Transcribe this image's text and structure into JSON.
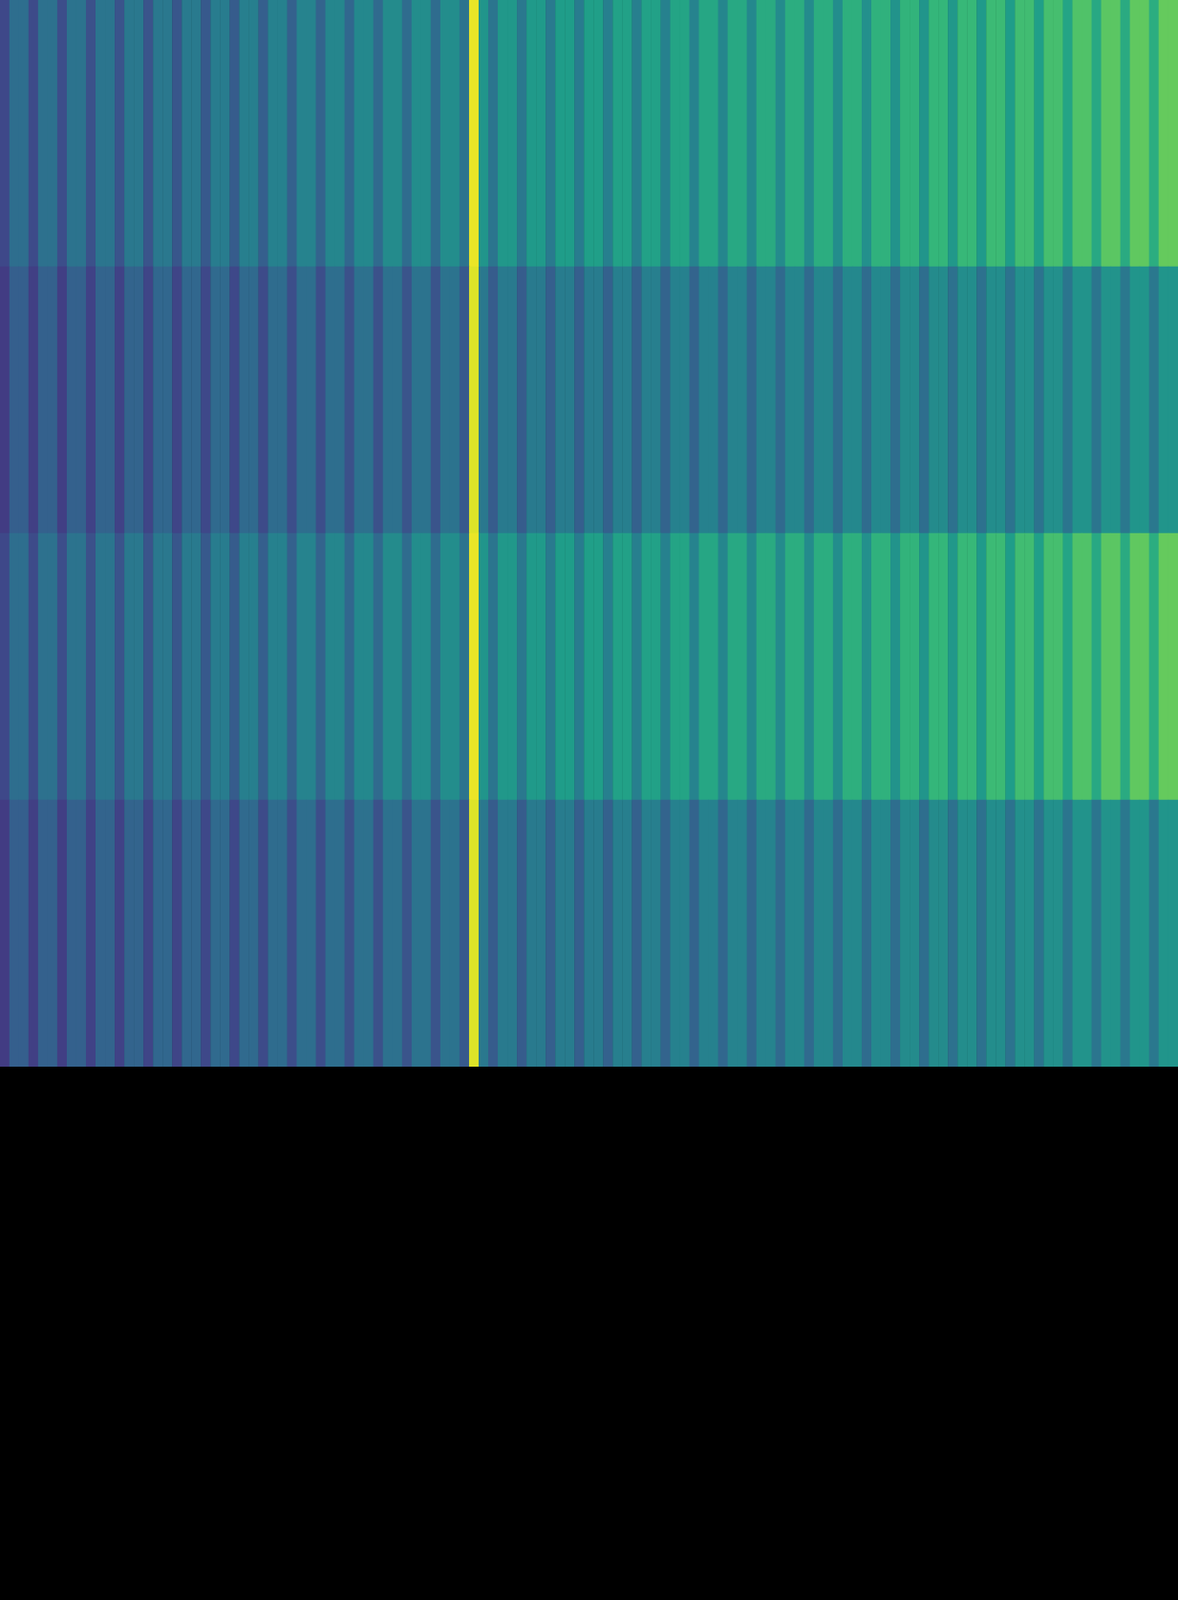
{
  "chart_data": {
    "type": "heatmap",
    "tick_labels": false,
    "grid": false,
    "color_range": [
      0,
      1
    ],
    "cells": [
      [
        0.22,
        0.36,
        0.36,
        0.23,
        0.37,
        0.37,
        0.24,
        0.38,
        0.38,
        0.25,
        0.39,
        0.39,
        0.26,
        0.4,
        0.4,
        0.26,
        0.4,
        0.4,
        0.27,
        0.41,
        0.41,
        0.28,
        0.42,
        0.42,
        0.29,
        0.43,
        0.43,
        0.3,
        0.44,
        0.44,
        0.31,
        0.45,
        0.45,
        0.32,
        0.46,
        0.46,
        0.33,
        0.47,
        0.47,
        0.34,
        0.48,
        0.48,
        0.35,
        0.49,
        0.49,
        0.35,
        0.49,
        0.49,
        0.38,
        0.97,
        0.52,
        0.39,
        0.53,
        0.53,
        0.4,
        0.54,
        0.54,
        0.41,
        0.55,
        0.55,
        0.42,
        0.56,
        0.56,
        0.43,
        0.57,
        0.57,
        0.43,
        0.57,
        0.57,
        0.44,
        0.58,
        0.58,
        0.45,
        0.59,
        0.59,
        0.46,
        0.6,
        0.6,
        0.47,
        0.61,
        0.61,
        0.48,
        0.62,
        0.62,
        0.48,
        0.62,
        0.62,
        0.49,
        0.63,
        0.63,
        0.5,
        0.64,
        0.64,
        0.51,
        0.65,
        0.65,
        0.52,
        0.66,
        0.66,
        0.53,
        0.67,
        0.67,
        0.54,
        0.68,
        0.68,
        0.55,
        0.69,
        0.69,
        0.56,
        0.7,
        0.7,
        0.58,
        0.72,
        0.72,
        0.6,
        0.74,
        0.74,
        0.61,
        0.75,
        0.75,
        0.62,
        0.76,
        0.76
      ],
      [
        0.18,
        0.3,
        0.3,
        0.19,
        0.31,
        0.31,
        0.19,
        0.31,
        0.31,
        0.2,
        0.32,
        0.32,
        0.2,
        0.32,
        0.32,
        0.21,
        0.33,
        0.33,
        0.21,
        0.33,
        0.33,
        0.22,
        0.34,
        0.34,
        0.22,
        0.34,
        0.34,
        0.23,
        0.35,
        0.35,
        0.24,
        0.36,
        0.36,
        0.24,
        0.36,
        0.36,
        0.25,
        0.37,
        0.37,
        0.25,
        0.37,
        0.37,
        0.26,
        0.38,
        0.38,
        0.26,
        0.38,
        0.38,
        0.28,
        0.95,
        0.4,
        0.29,
        0.41,
        0.41,
        0.29,
        0.41,
        0.41,
        0.3,
        0.42,
        0.42,
        0.3,
        0.42,
        0.42,
        0.31,
        0.43,
        0.43,
        0.31,
        0.43,
        0.43,
        0.32,
        0.44,
        0.44,
        0.32,
        0.44,
        0.44,
        0.33,
        0.45,
        0.45,
        0.33,
        0.45,
        0.45,
        0.34,
        0.46,
        0.46,
        0.34,
        0.46,
        0.46,
        0.35,
        0.47,
        0.47,
        0.35,
        0.47,
        0.47,
        0.36,
        0.48,
        0.48,
        0.36,
        0.48,
        0.48,
        0.37,
        0.49,
        0.49,
        0.37,
        0.49,
        0.49,
        0.38,
        0.5,
        0.5,
        0.38,
        0.5,
        0.5,
        0.39,
        0.51,
        0.51,
        0.39,
        0.51,
        0.51,
        0.4,
        0.52,
        0.52,
        0.4,
        0.52,
        0.52
      ],
      [
        0.22,
        0.36,
        0.36,
        0.23,
        0.37,
        0.37,
        0.24,
        0.38,
        0.38,
        0.25,
        0.39,
        0.39,
        0.26,
        0.4,
        0.4,
        0.26,
        0.4,
        0.4,
        0.27,
        0.41,
        0.41,
        0.28,
        0.42,
        0.42,
        0.29,
        0.43,
        0.43,
        0.3,
        0.44,
        0.44,
        0.31,
        0.45,
        0.45,
        0.32,
        0.46,
        0.46,
        0.33,
        0.47,
        0.47,
        0.34,
        0.48,
        0.48,
        0.35,
        0.49,
        0.49,
        0.35,
        0.49,
        0.49,
        0.38,
        0.97,
        0.52,
        0.39,
        0.53,
        0.53,
        0.4,
        0.54,
        0.54,
        0.41,
        0.55,
        0.55,
        0.42,
        0.56,
        0.56,
        0.43,
        0.57,
        0.57,
        0.43,
        0.57,
        0.57,
        0.44,
        0.58,
        0.58,
        0.45,
        0.59,
        0.59,
        0.46,
        0.6,
        0.6,
        0.47,
        0.61,
        0.61,
        0.48,
        0.62,
        0.62,
        0.48,
        0.62,
        0.62,
        0.49,
        0.63,
        0.63,
        0.5,
        0.64,
        0.64,
        0.51,
        0.65,
        0.65,
        0.52,
        0.66,
        0.66,
        0.53,
        0.67,
        0.67,
        0.54,
        0.68,
        0.68,
        0.55,
        0.69,
        0.69,
        0.56,
        0.7,
        0.7,
        0.58,
        0.72,
        0.72,
        0.6,
        0.74,
        0.74,
        0.61,
        0.75,
        0.75,
        0.62,
        0.76,
        0.76
      ],
      [
        0.18,
        0.3,
        0.3,
        0.19,
        0.31,
        0.31,
        0.19,
        0.31,
        0.31,
        0.2,
        0.32,
        0.32,
        0.2,
        0.32,
        0.32,
        0.21,
        0.33,
        0.33,
        0.21,
        0.33,
        0.33,
        0.22,
        0.34,
        0.34,
        0.22,
        0.34,
        0.34,
        0.23,
        0.35,
        0.35,
        0.24,
        0.36,
        0.36,
        0.24,
        0.36,
        0.36,
        0.25,
        0.37,
        0.37,
        0.25,
        0.37,
        0.37,
        0.26,
        0.38,
        0.38,
        0.26,
        0.38,
        0.38,
        0.28,
        0.95,
        0.4,
        0.29,
        0.41,
        0.41,
        0.29,
        0.41,
        0.41,
        0.3,
        0.42,
        0.42,
        0.3,
        0.42,
        0.42,
        0.31,
        0.43,
        0.43,
        0.31,
        0.43,
        0.43,
        0.32,
        0.44,
        0.44,
        0.32,
        0.44,
        0.44,
        0.33,
        0.45,
        0.45,
        0.33,
        0.45,
        0.45,
        0.34,
        0.46,
        0.46,
        0.34,
        0.46,
        0.46,
        0.35,
        0.47,
        0.47,
        0.35,
        0.47,
        0.47,
        0.36,
        0.48,
        0.48,
        0.36,
        0.48,
        0.48,
        0.37,
        0.49,
        0.49,
        0.37,
        0.49,
        0.49,
        0.38,
        0.5,
        0.5,
        0.38,
        0.5,
        0.5,
        0.39,
        0.51,
        0.51,
        0.39,
        0.51,
        0.51,
        0.4,
        0.52,
        0.52,
        0.4,
        0.52,
        0.52
      ]
    ]
  }
}
